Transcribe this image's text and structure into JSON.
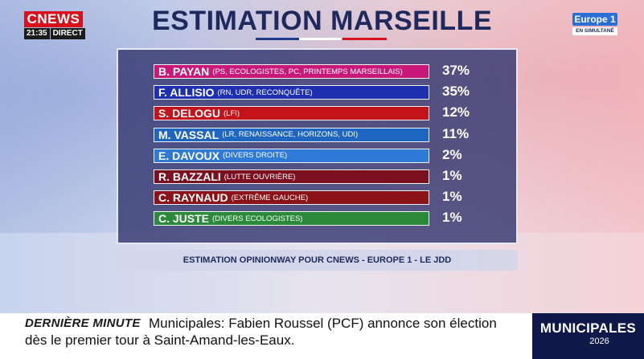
{
  "channel": {
    "logo": "CNEWS",
    "time": "21:35",
    "live_label": "DIRECT"
  },
  "partner": {
    "logo": "Europe 1",
    "sub": "EN SIMULTANÉ"
  },
  "title": "ESTIMATION MARSEILLE",
  "candidates": [
    {
      "name": "B. PAYAN",
      "party": "(PS, ECOLOGISTES, PC, PRINTEMPS MARSEILLAIS)",
      "pct": "37%",
      "color": "#c8197a"
    },
    {
      "name": "F. ALLISIO",
      "party": "(RN, UDR, RECONQUÊTE)",
      "pct": "35%",
      "color": "#1e2fb0"
    },
    {
      "name": "S. DELOGU",
      "party": "(LFI)",
      "pct": "12%",
      "color": "#c3141c"
    },
    {
      "name": "M. VASSAL",
      "party": "(LR, RENAISSANCE, HORIZONS, UDI)",
      "pct": "11%",
      "color": "#1f66c0"
    },
    {
      "name": "E. DAVOUX",
      "party": "(DIVERS DROITE)",
      "pct": "2%",
      "color": "#2f7ad6"
    },
    {
      "name": "R. BAZZALI",
      "party": "(LUTTE OUVRIÈRE)",
      "pct": "1%",
      "color": "#7a1020"
    },
    {
      "name": "C. RAYNAUD",
      "party": "(EXTRÊME GAUCHE)",
      "pct": "1%",
      "color": "#8a1218"
    },
    {
      "name": "C. JUSTE",
      "party": "(DIVERS ECOLOGISTES)",
      "pct": "1%",
      "color": "#2a8a3a"
    }
  ],
  "source": "ESTIMATION OPINIONWAY POUR CNEWS - EUROPE 1 - LE JDD",
  "ticker": {
    "label": "DERNIÈRE MINUTE",
    "line1": "Municipales: Fabien Roussel (PCF) annonce son élection",
    "line2": "dès le premier tour à Saint-Amand-les-Eaux."
  },
  "badge": {
    "title": "MUNICIPALES",
    "year": "2026"
  }
}
